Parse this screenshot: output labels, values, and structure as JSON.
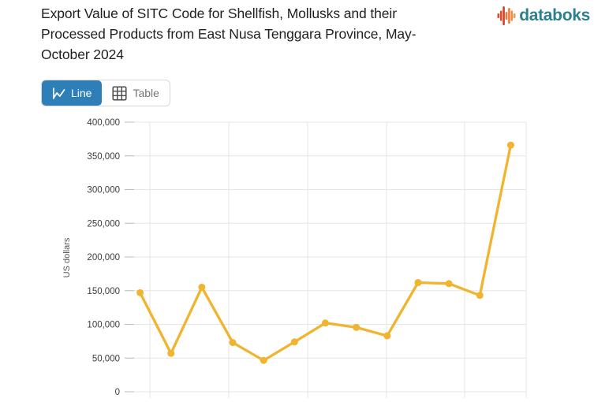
{
  "header": {
    "title": "Export Value of SITC Code for Shellfish, Mollusks and their Processed Products from East Nusa Tenggara Province, May-October 2024",
    "title_lines": [
      "Export Value of SITC Code for Shellfish, Mollusks and their",
      "Processed Products from East Nusa Tenggara Province, May-",
      "October 2024"
    ],
    "logo_text": "databoks"
  },
  "toolbar": {
    "line_label": "Line",
    "table_label": "Table"
  },
  "colors": {
    "accent_blue": "#2E7FB8",
    "series_yellow": "#F0B42E",
    "logo_teal": "#2B7F8E",
    "grid": "#E6E6E6",
    "tick": "#BDBDBD",
    "axis_text": "#3C3C3C",
    "ylabel_text": "#555555"
  },
  "chart_data": {
    "type": "line",
    "title": "Export Value of SITC Code for Shellfish, Mollusks and their Processed Products from East Nusa Tenggara Province, May-October 2024",
    "ylabel": "US dollars",
    "ylim": [
      0,
      400000
    ],
    "y_tick_labels": [
      "400,000",
      "350,000",
      "300,000",
      "250,000",
      "200,000",
      "150,000",
      "100,000",
      "50,000",
      "0"
    ],
    "x": [
      1,
      2,
      3,
      4,
      5,
      6,
      7,
      8,
      9,
      10,
      11,
      12,
      13
    ],
    "x_tick_labels_visible": false,
    "values": [
      147000,
      57000,
      155000,
      73000,
      46500,
      74000,
      102000,
      95500,
      83000,
      162000,
      160500,
      143000,
      366000
    ],
    "line_color": "#F0B42E",
    "grid": true,
    "legend": "none"
  }
}
